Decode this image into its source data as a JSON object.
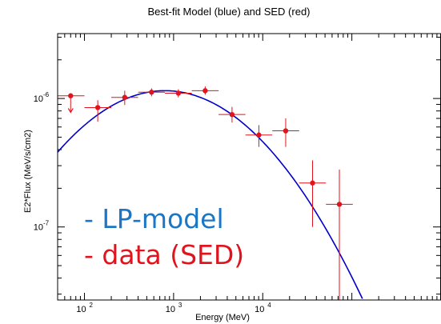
{
  "chart_data": {
    "type": "scatter",
    "title": "Best-fit Model (blue) and SED (red)",
    "xlabel": "Energy (MeV)",
    "ylabel": "E2*Flux (MeV/s/cm2)",
    "xscale": "log",
    "yscale": "log",
    "xlim": [
      50,
      1000000
    ],
    "ylim": [
      2.7e-08,
      3.2e-06
    ],
    "x_tick_labels": [
      {
        "value": 100,
        "label": "10",
        "exp": "2"
      },
      {
        "value": 1000,
        "label": "10",
        "exp": "3"
      },
      {
        "value": 10000,
        "label": "10",
        "exp": "4"
      }
    ],
    "y_tick_labels": [
      {
        "value": 1e-06,
        "label": "10",
        "exp": "-6"
      },
      {
        "value": 1e-07,
        "label": "10",
        "exp": "-7"
      }
    ],
    "model": {
      "name": "LP-model",
      "color": "#0000cc",
      "log_parabola": {
        "pivot": 800,
        "norm": 1.15e-06,
        "beta_log10": 0.33
      }
    },
    "series": [
      {
        "name": "data (SED)",
        "color": "#e0141e",
        "points": [
          {
            "x": 70,
            "y": 1.05e-06,
            "xerr": [
              50,
              100
            ],
            "yerr": [
              7.8e-07,
              1.05e-06
            ],
            "upper_limit": true
          },
          {
            "x": 141,
            "y": 8.5e-07,
            "xerr": [
              100,
              200
            ],
            "yerr": [
              6.6e-07,
              9.7e-07
            ]
          },
          {
            "x": 283,
            "y": 1.02e-06,
            "xerr": [
              200,
              400
            ],
            "yerr": [
              8.9e-07,
              1.15e-06
            ]
          },
          {
            "x": 566,
            "y": 1.12e-06,
            "xerr": [
              400,
              800
            ],
            "yerr": [
              1.04e-06,
              1.2e-06
            ]
          },
          {
            "x": 1131,
            "y": 1.1e-06,
            "xerr": [
              800,
              1600
            ],
            "yerr": [
              1.02e-06,
              1.18e-06
            ]
          },
          {
            "x": 2263,
            "y": 1.15e-06,
            "xerr": [
              1600,
              3200
            ],
            "yerr": [
              1.07e-06,
              1.24e-06
            ]
          },
          {
            "x": 4525,
            "y": 7.5e-07,
            "xerr": [
              3200,
              6400
            ],
            "yerr": [
              6.5e-07,
              8.6e-07
            ]
          },
          {
            "x": 9051,
            "y": 5.2e-07,
            "xerr": [
              6400,
              12800
            ],
            "yerr": [
              4.2e-07,
              6.2e-07
            ]
          },
          {
            "x": 18102,
            "y": 5.6e-07,
            "xerr": [
              12800,
              25600
            ],
            "yerr": [
              4.2e-07,
              7e-07
            ]
          },
          {
            "x": 36204,
            "y": 2.2e-07,
            "xerr": [
              25600,
              51200
            ],
            "yerr": [
              1e-07,
              3.3e-07
            ]
          },
          {
            "x": 72408,
            "y": 1.5e-07,
            "xerr": [
              51200,
              102400
            ],
            "yerr": [
              2.7e-08,
              2.8e-07
            ]
          }
        ]
      }
    ],
    "annotations": [
      {
        "text": "- LP-model",
        "color": "#1b77c5"
      },
      {
        "text": "- data (SED)",
        "color": "#e0141e"
      }
    ]
  }
}
